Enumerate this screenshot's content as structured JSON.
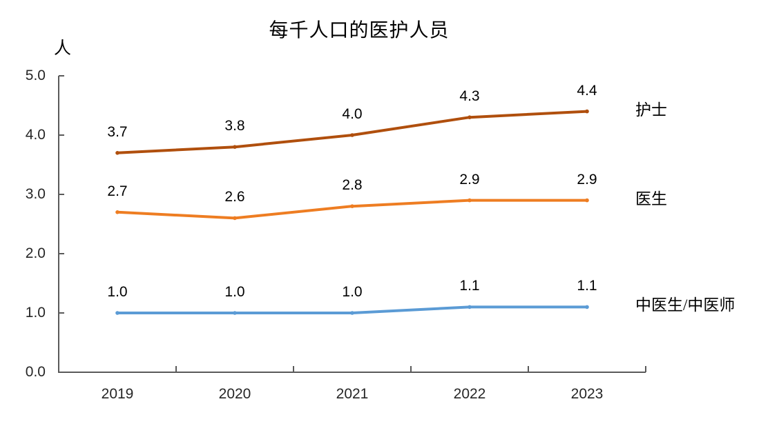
{
  "title": "每千人口的医护人员",
  "y_axis_unit": "人",
  "colors": {
    "axis": "#595959",
    "text": "#000000",
    "nurse_line": "#B04F0D",
    "doctor_line": "#EE7D22",
    "tcm_line": "#5B9BD5"
  },
  "chart_data": {
    "type": "line",
    "title": "每千人口的医护人员",
    "ylabel": "人",
    "categories": [
      "2019",
      "2020",
      "2021",
      "2022",
      "2023"
    ],
    "series": [
      {
        "name": "护士",
        "values": [
          3.7,
          3.8,
          4.0,
          4.3,
          4.4
        ],
        "color": "#B04F0D"
      },
      {
        "name": "医生",
        "values": [
          2.7,
          2.6,
          2.8,
          2.9,
          2.9
        ],
        "color": "#EE7D22"
      },
      {
        "name": "中医生/中医师",
        "values": [
          1.0,
          1.0,
          1.0,
          1.1,
          1.1
        ],
        "color": "#5B9BD5"
      }
    ],
    "ylim": [
      0.0,
      5.0
    ],
    "y_tick_labels": [
      "0.0",
      "1.0",
      "2.0",
      "3.0",
      "4.0",
      "5.0"
    ],
    "grid": false,
    "data_labels": true,
    "data_label_decimals": 1,
    "legend_position": "right-of-line-ends"
  }
}
